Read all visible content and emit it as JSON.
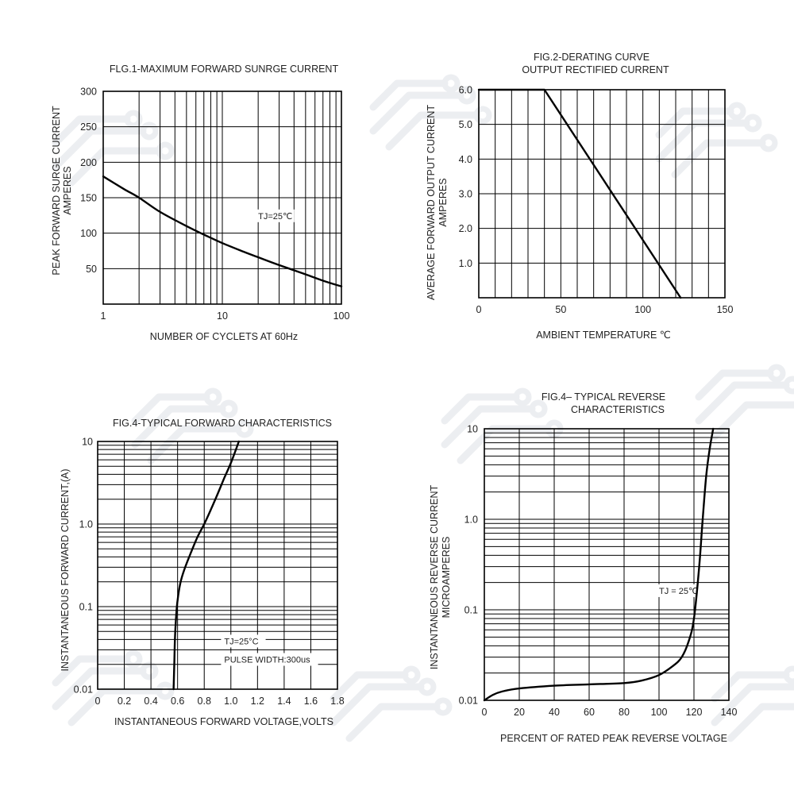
{
  "chart_data": [
    {
      "id": "fig1",
      "type": "line",
      "title": "FLG.1-MAXIMUM FORWARD SUNRGE CURRENT",
      "xlabel": "NUMBER OF CYCLETS AT 60Hz",
      "ylabel": [
        "PEAK FORWARD SURGE CURRENT",
        "AMPERES"
      ],
      "xscale": "log",
      "xlim": [
        1,
        100
      ],
      "ylim": [
        0,
        300
      ],
      "xticks": [
        {
          "v": 1,
          "label": "1"
        },
        {
          "v": 10,
          "label": "10"
        },
        {
          "v": 100,
          "label": "100"
        }
      ],
      "yticks": [
        {
          "v": 50,
          "label": "50"
        },
        {
          "v": 100,
          "label": "100"
        },
        {
          "v": 150,
          "label": "150"
        },
        {
          "v": 200,
          "label": "200"
        },
        {
          "v": 250,
          "label": "250"
        },
        {
          "v": 300,
          "label": "300"
        }
      ],
      "xgrid": [
        2,
        3,
        4,
        5,
        6,
        7,
        8,
        9,
        10,
        20,
        30,
        40,
        50,
        60,
        70,
        80,
        90
      ],
      "ygrid": [
        50,
        100,
        150,
        200,
        250
      ],
      "annotations": [
        {
          "text": "TJ=25℃",
          "x": 20,
          "y": 120
        }
      ],
      "series": [
        {
          "name": "surge",
          "x": [
            1,
            1.5,
            2,
            3,
            5,
            7,
            10,
            15,
            20,
            30,
            50,
            70,
            100
          ],
          "y": [
            180,
            162,
            150,
            130,
            110,
            98,
            86,
            74,
            66,
            55,
            42,
            33,
            25
          ]
        }
      ]
    },
    {
      "id": "fig2",
      "type": "line",
      "title": [
        "FIG.2-DERATING CURVE",
        "OUTPUT RECTIFIED CURRENT"
      ],
      "xlabel": "AMBIENT TEMPERATURE ℃",
      "ylabel": [
        "AVERAGE FORWARD OUTPUT CURRENT",
        "AMPERES"
      ],
      "xscale": "linear",
      "xlim": [
        0,
        150
      ],
      "ylim": [
        0,
        6
      ],
      "xticks": [
        {
          "v": 0,
          "label": "0"
        },
        {
          "v": 50,
          "label": "50"
        },
        {
          "v": 100,
          "label": "100"
        },
        {
          "v": 150,
          "label": "150"
        }
      ],
      "yticks": [
        {
          "v": 1,
          "label": "1.0"
        },
        {
          "v": 2,
          "label": "2.0"
        },
        {
          "v": 3,
          "label": "3.0"
        },
        {
          "v": 4,
          "label": "4.0"
        },
        {
          "v": 5,
          "label": "5.0"
        },
        {
          "v": 6,
          "label": "6.0"
        }
      ],
      "xgrid": [
        10,
        20,
        30,
        40,
        50,
        60,
        70,
        80,
        90,
        100,
        110,
        120,
        130,
        140
      ],
      "ygrid": [
        1,
        2,
        3,
        4,
        5
      ],
      "annotations": [],
      "series": [
        {
          "name": "derating",
          "x": [
            0,
            40,
            123
          ],
          "y": [
            6,
            6,
            0
          ]
        }
      ]
    },
    {
      "id": "fig3",
      "type": "line",
      "title": "FIG.4-TYPICAL FORWARD CHARACTERISTICS",
      "xlabel": "INSTANTANEOUS FORWARD VOLTAGE,VOLTS",
      "ylabel": [
        "INSTANTANEOUS FORWARD CURRENT,(A)"
      ],
      "xscale": "linear",
      "yscale": "log",
      "xlim": [
        0,
        1.8
      ],
      "ylim": [
        0.01,
        10
      ],
      "xticks": [
        {
          "v": 0,
          "label": "0"
        },
        {
          "v": 0.2,
          "label": "0.2"
        },
        {
          "v": 0.4,
          "label": "0.4"
        },
        {
          "v": 0.6,
          "label": "0.6"
        },
        {
          "v": 0.8,
          "label": "0.8"
        },
        {
          "v": 1.0,
          "label": "1.0"
        },
        {
          "v": 1.2,
          "label": "1.2"
        },
        {
          "v": 1.4,
          "label": "1.4"
        },
        {
          "v": 1.6,
          "label": "1.6"
        },
        {
          "v": 1.8,
          "label": "1.8"
        }
      ],
      "yticks": [
        {
          "v": 0.01,
          "label": "0.01"
        },
        {
          "v": 0.1,
          "label": "0.1"
        },
        {
          "v": 1,
          "label": "1.0"
        },
        {
          "v": 10,
          "label": "10"
        }
      ],
      "xgrid": [
        0.2,
        0.4,
        0.6,
        0.8,
        1.0,
        1.2,
        1.4,
        1.6
      ],
      "ygrid": [
        0.02,
        0.03,
        0.04,
        0.05,
        0.06,
        0.07,
        0.08,
        0.09,
        0.1,
        0.2,
        0.3,
        0.4,
        0.5,
        0.6,
        0.7,
        0.8,
        0.9,
        1,
        2,
        3,
        4,
        5,
        6,
        7,
        8,
        9
      ],
      "annotations": [
        {
          "text": "TJ=25°C",
          "x": 0.95,
          "y": 0.035
        },
        {
          "text": "PULSE WIDTH:300us",
          "x": 0.95,
          "y": 0.021
        }
      ],
      "series": [
        {
          "name": "forward",
          "x": [
            0.57,
            0.575,
            0.58,
            0.59,
            0.6,
            0.62,
            0.65,
            0.7,
            0.75,
            0.8,
            0.85,
            0.9,
            0.95,
            1.0,
            1.06
          ],
          "y": [
            0.01,
            0.02,
            0.04,
            0.08,
            0.12,
            0.19,
            0.28,
            0.45,
            0.7,
            1.0,
            1.5,
            2.3,
            3.6,
            5.5,
            10
          ]
        }
      ]
    },
    {
      "id": "fig4",
      "type": "line",
      "title": [
        "FIG.4– TYPICAL REVERSE",
        "CHARACTERISTICS"
      ],
      "xlabel": "PERCENT OF RATED PEAK REVERSE VOLTAGE",
      "ylabel": [
        "INSTANTANEOUS REVERSE CURRENT",
        "MICROAMPERES"
      ],
      "xscale": "linear",
      "yscale": "log",
      "xlim": [
        0,
        140
      ],
      "ylim": [
        0.01,
        10
      ],
      "xticks": [
        {
          "v": 0,
          "label": "0"
        },
        {
          "v": 20,
          "label": "20"
        },
        {
          "v": 40,
          "label": "40"
        },
        {
          "v": 60,
          "label": "60"
        },
        {
          "v": 80,
          "label": "80"
        },
        {
          "v": 100,
          "label": "100"
        },
        {
          "v": 120,
          "label": "120"
        },
        {
          "v": 140,
          "label": "140"
        }
      ],
      "yticks": [
        {
          "v": 0.01,
          "label": "0.01"
        },
        {
          "v": 0.1,
          "label": "0.1"
        },
        {
          "v": 1,
          "label": "1.0"
        },
        {
          "v": 10,
          "label": "10"
        }
      ],
      "xgrid": [
        20,
        40,
        60,
        80,
        100,
        120
      ],
      "ygrid": [
        0.02,
        0.03,
        0.04,
        0.05,
        0.06,
        0.07,
        0.08,
        0.09,
        0.1,
        0.2,
        0.3,
        0.4,
        0.5,
        0.6,
        0.7,
        0.8,
        0.9,
        1,
        2,
        3,
        4,
        5,
        6,
        7,
        8,
        9
      ],
      "annotations": [
        {
          "text": "TJ = 25℃",
          "x": 100,
          "y": 0.15
        }
      ],
      "series": [
        {
          "name": "reverse",
          "x": [
            0,
            5,
            10,
            20,
            40,
            60,
            80,
            90,
            100,
            108,
            113,
            117,
            120,
            123,
            125,
            127,
            129,
            131
          ],
          "y": [
            0.01,
            0.0115,
            0.0125,
            0.0135,
            0.0145,
            0.015,
            0.0155,
            0.0165,
            0.019,
            0.024,
            0.03,
            0.045,
            0.08,
            0.3,
            1,
            3,
            6,
            10
          ]
        }
      ]
    }
  ]
}
